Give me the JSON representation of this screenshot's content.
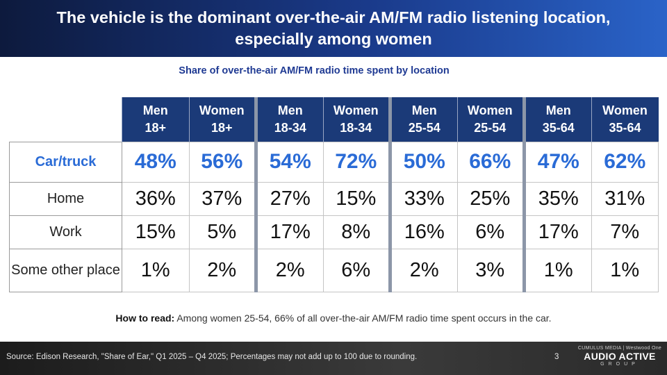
{
  "title": "The vehicle is the dominant over-the-air AM/FM radio listening location, especially among women",
  "subtitle": "Share of over-the-air AM/FM radio time spent by location",
  "table": {
    "columns": [
      {
        "line1": "Men",
        "line2": "18+"
      },
      {
        "line1": "Women",
        "line2": "18+"
      },
      {
        "line1": "Men",
        "line2": "18-34"
      },
      {
        "line1": "Women",
        "line2": "18-34"
      },
      {
        "line1": "Men",
        "line2": "25-54"
      },
      {
        "line1": "Women",
        "line2": "25-54"
      },
      {
        "line1": "Men",
        "line2": "35-64"
      },
      {
        "line1": "Women",
        "line2": "35-64"
      }
    ],
    "rows": [
      {
        "label": "Car/truck",
        "values": [
          "48%",
          "56%",
          "54%",
          "72%",
          "50%",
          "66%",
          "47%",
          "62%"
        ]
      },
      {
        "label": "Home",
        "values": [
          "36%",
          "37%",
          "27%",
          "15%",
          "33%",
          "25%",
          "35%",
          "31%"
        ]
      },
      {
        "label": "Work",
        "values": [
          "15%",
          "5%",
          "17%",
          "8%",
          "16%",
          "6%",
          "17%",
          "7%"
        ]
      },
      {
        "label": "Some other place",
        "values": [
          "1%",
          "2%",
          "2%",
          "6%",
          "2%",
          "3%",
          "1%",
          "1%"
        ]
      }
    ]
  },
  "how_to_read": {
    "label": "How to read:",
    "text": "Among women 25-54, 66% of all over-the-air AM/FM radio time spent occurs in the car."
  },
  "footer": {
    "source": "Source: Edison Research, \"Share of Ear,\" Q1 2025 – Q4 2025; Percentages may not add up to 100 due to rounding.",
    "page_number": "3",
    "logo_top": "CUMULUS MEDIA | Westwood One",
    "logo_main": "AUDIO ACTIVE",
    "logo_sub": "GROUP"
  },
  "colors": {
    "title_bg": "#1a3a8a",
    "header_bg": "#1b3a78",
    "highlight_text": "#2a6bd6",
    "subtitle_text": "#1f3a93",
    "footer_bg": "#2a2a2a"
  }
}
